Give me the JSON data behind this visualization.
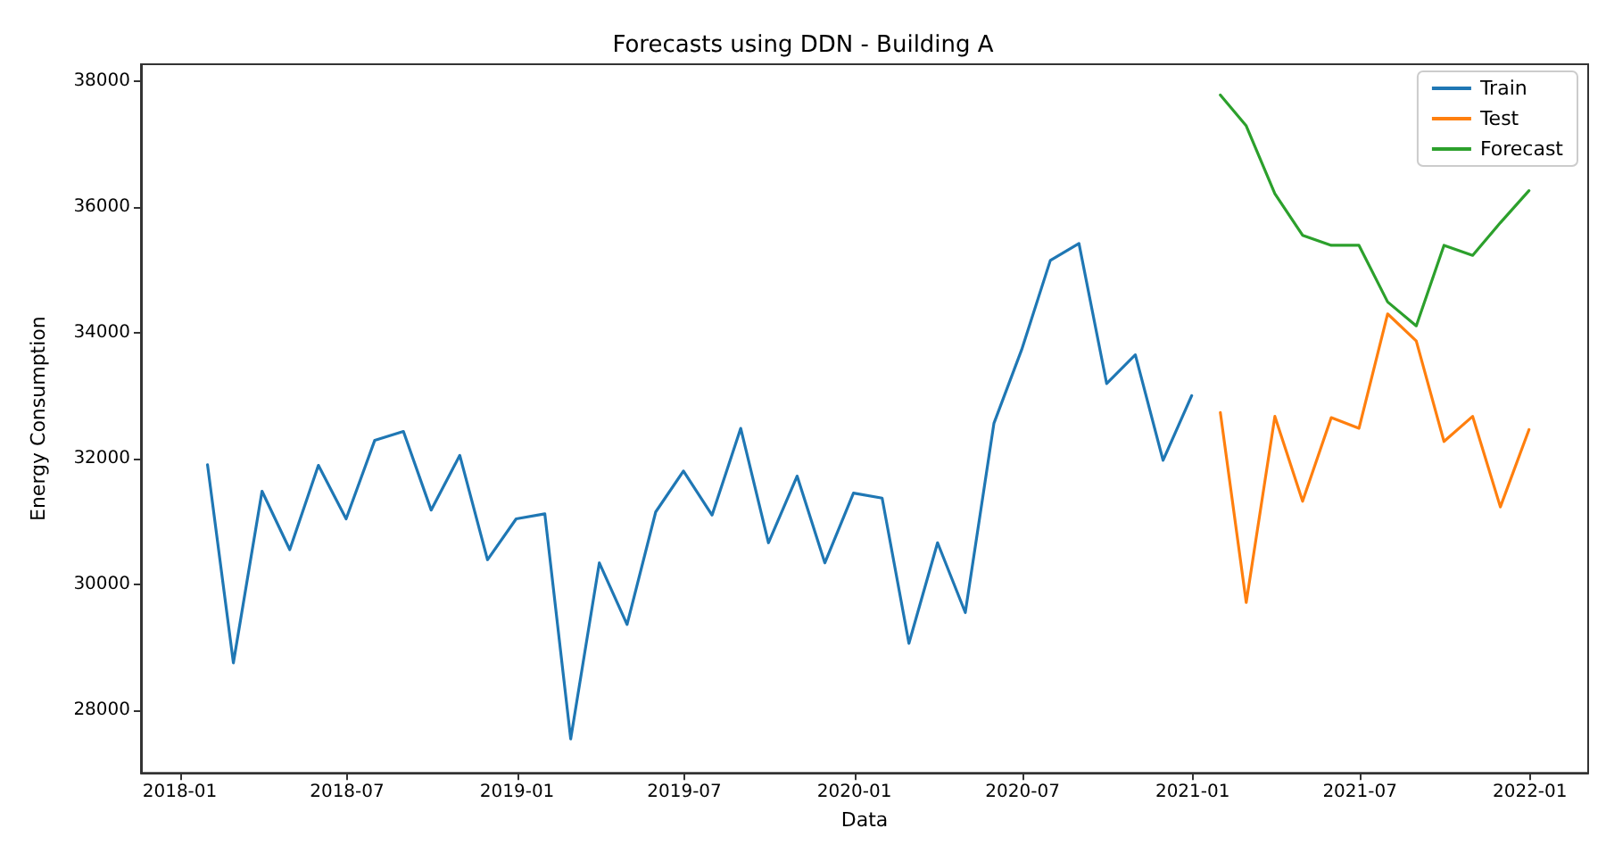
{
  "chart_data": {
    "type": "line",
    "title": "Forecasts using DDN - Building A",
    "xlabel": "Data",
    "ylabel": "Energy Consumption",
    "xlim": [
      "2017-11-20",
      "2022-03-05"
    ],
    "xticks": [
      "2018-01",
      "2018-07",
      "2019-01",
      "2019-07",
      "2020-01",
      "2020-07",
      "2021-01",
      "2021-07",
      "2022-01"
    ],
    "ylim": [
      27000,
      38270
    ],
    "yticks": [
      28000,
      30000,
      32000,
      34000,
      36000,
      38000
    ],
    "grid": false,
    "legend": "top right",
    "marker": "none",
    "line_style": "solid",
    "series": [
      {
        "name": "Train",
        "color": "#1f77b4",
        "x": [
          "2018-01-31",
          "2018-02-28",
          "2018-03-31",
          "2018-04-30",
          "2018-05-31",
          "2018-06-30",
          "2018-07-31",
          "2018-08-31",
          "2018-09-30",
          "2018-10-31",
          "2018-11-30",
          "2018-12-31",
          "2019-01-31",
          "2019-02-28",
          "2019-03-31",
          "2019-04-30",
          "2019-05-31",
          "2019-06-30",
          "2019-07-31",
          "2019-08-31",
          "2019-09-30",
          "2019-10-31",
          "2019-11-30",
          "2019-12-31",
          "2020-01-31",
          "2020-02-29",
          "2020-03-31",
          "2020-04-30",
          "2020-05-31",
          "2020-06-30",
          "2020-07-31",
          "2020-08-31",
          "2020-09-30",
          "2020-10-31",
          "2020-11-30",
          "2020-12-31"
        ],
        "values": [
          31900,
          28750,
          31480,
          30550,
          31890,
          31040,
          32290,
          32430,
          31180,
          32050,
          30390,
          31040,
          31120,
          27540,
          30340,
          29360,
          31150,
          31800,
          31100,
          32480,
          30660,
          31720,
          30340,
          31450,
          31370,
          29060,
          30660,
          29550,
          32560,
          33730,
          35150,
          35420,
          33190,
          33650,
          31970,
          33000
        ]
      },
      {
        "name": "Test",
        "color": "#ff7f0e",
        "x": [
          "2021-01-31",
          "2021-02-28",
          "2021-03-31",
          "2021-04-30",
          "2021-05-31",
          "2021-06-30",
          "2021-07-31",
          "2021-08-31",
          "2021-09-30",
          "2021-10-31",
          "2021-11-30",
          "2021-12-31"
        ],
        "values": [
          32730,
          29710,
          32670,
          31320,
          32650,
          32480,
          34300,
          33870,
          32270,
          32670,
          31230,
          32460
        ]
      },
      {
        "name": "Forecast",
        "color": "#2ca02c",
        "x": [
          "2021-01-31",
          "2021-02-28",
          "2021-03-31",
          "2021-04-30",
          "2021-05-31",
          "2021-06-30",
          "2021-07-31",
          "2021-08-31",
          "2021-09-30",
          "2021-10-31",
          "2021-11-30",
          "2021-12-31"
        ],
        "values": [
          37780,
          37290,
          36210,
          35550,
          35390,
          35390,
          34490,
          34110,
          35390,
          35230,
          35750,
          36260
        ]
      }
    ]
  }
}
